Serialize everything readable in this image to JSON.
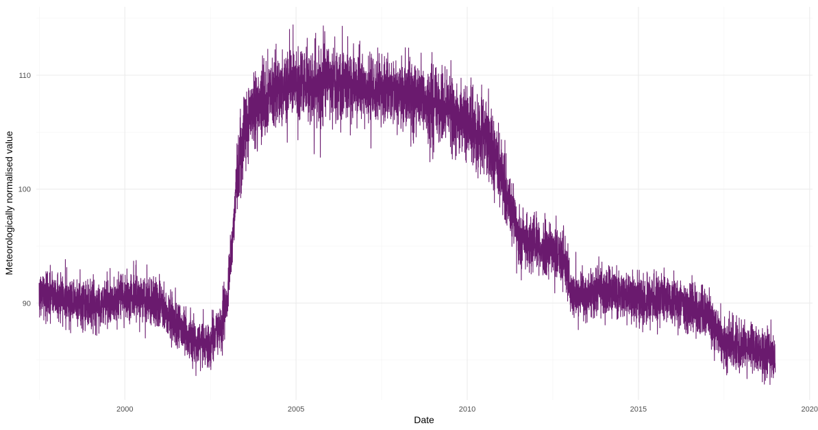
{
  "chart_data": {
    "type": "line",
    "title": "",
    "xlabel": "Date",
    "ylabel": "Meteorologically normalised value",
    "x_ticks": [
      "2000",
      "2005",
      "2010",
      "2015",
      "2020"
    ],
    "y_ticks": [
      "90",
      "100",
      "110"
    ],
    "xlim": [
      "1997-06-01",
      "2020-02-01"
    ],
    "ylim": [
      81.5,
      116
    ],
    "grid": true,
    "line_color": "#6a1a6e",
    "series": [
      {
        "x_start": "1997-07-01",
        "x_end": "2018-12-31",
        "trend": [
          [
            "1997-07-01",
            90.8
          ],
          [
            "1998-01-01",
            90.6
          ],
          [
            "1998-07-01",
            90.3
          ],
          [
            "1999-01-01",
            89.8
          ],
          [
            "1999-07-01",
            90.0
          ],
          [
            "2000-01-01",
            90.7
          ],
          [
            "2000-07-01",
            90.5
          ],
          [
            "2001-01-01",
            89.9
          ],
          [
            "2001-07-01",
            88.3
          ],
          [
            "2002-01-01",
            86.6
          ],
          [
            "2002-07-01",
            86.4
          ],
          [
            "2002-11-01",
            88.0
          ],
          [
            "2003-01-01",
            90.5
          ],
          [
            "2003-03-01",
            96.0
          ],
          [
            "2003-05-01",
            103.0
          ],
          [
            "2003-09-01",
            106.5
          ],
          [
            "2004-01-01",
            107.8
          ],
          [
            "2004-07-01",
            108.7
          ],
          [
            "2005-01-01",
            109.2
          ],
          [
            "2006-01-01",
            109.5
          ],
          [
            "2007-01-01",
            108.8
          ],
          [
            "2008-01-01",
            108.4
          ],
          [
            "2009-01-01",
            107.5
          ],
          [
            "2009-07-01",
            106.8
          ],
          [
            "2010-01-01",
            106.0
          ],
          [
            "2010-07-01",
            104.5
          ],
          [
            "2011-01-01",
            101.5
          ],
          [
            "2011-07-01",
            96.0
          ],
          [
            "2012-01-01",
            95.0
          ],
          [
            "2012-07-01",
            94.5
          ],
          [
            "2012-11-01",
            94.0
          ],
          [
            "2013-02-01",
            90.5
          ],
          [
            "2014-01-01",
            91.0
          ],
          [
            "2015-01-01",
            90.4
          ],
          [
            "2016-01-01",
            90.3
          ],
          [
            "2016-07-01",
            89.8
          ],
          [
            "2017-01-01",
            89.0
          ],
          [
            "2017-07-01",
            86.6
          ],
          [
            "2018-07-01",
            86.0
          ],
          [
            "2018-12-31",
            85.2
          ]
        ]
      }
    ]
  }
}
